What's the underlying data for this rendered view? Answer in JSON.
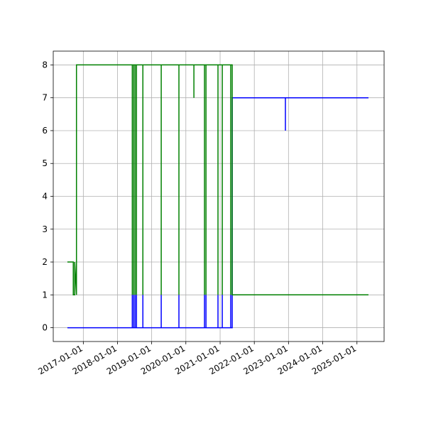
{
  "chart_data": {
    "type": "line",
    "x": [
      "2016-07-15",
      "2016-09-16",
      "2016-09-16",
      "2016-10-01",
      "2016-10-01",
      "2016-10-20",
      "2016-10-20",
      "2018-06-08",
      "2018-06-08",
      "2018-06-08",
      "2018-06-23",
      "2018-06-23",
      "2018-06-23",
      "2018-07-08",
      "2018-07-08",
      "2018-07-08",
      "2018-07-23",
      "2018-07-23",
      "2018-07-23",
      "2018-09-29",
      "2018-09-29",
      "2018-09-29",
      "2019-04-13",
      "2019-04-13",
      "2019-04-13",
      "2019-10-19",
      "2019-10-19",
      "2019-10-19",
      "2020-03-27",
      "2020-03-27",
      "2020-03-27",
      "2020-07-18",
      "2020-07-18",
      "2020-07-18",
      "2020-08-03",
      "2020-08-03",
      "2020-08-03",
      "2020-12-09",
      "2020-12-09",
      "2020-12-09",
      "2021-01-24",
      "2021-01-24",
      "2021-01-24",
      "2021-04-24",
      "2021-04-24",
      "2021-04-24",
      "2021-05-10",
      "2021-05-10",
      "2022-11-29",
      "2022-11-29",
      "2022-11-29",
      "2025-05-04"
    ],
    "series": [
      {
        "color": "#0000ff",
        "values": [
          0,
          0,
          0,
          0,
          0,
          0,
          0,
          0,
          1,
          0,
          0,
          1,
          0,
          0,
          1,
          0,
          0,
          1,
          0,
          0,
          1,
          0,
          0,
          1,
          0,
          0,
          1,
          0,
          0,
          0,
          0,
          0,
          1,
          0,
          0,
          1,
          0,
          0,
          1,
          0,
          0,
          1,
          0,
          0,
          1,
          0,
          0,
          7,
          7,
          6,
          7,
          7
        ]
      },
      {
        "color": "#008000",
        "values": [
          2,
          2,
          1,
          1,
          2,
          1,
          8,
          8,
          1,
          8,
          8,
          1,
          8,
          8,
          1,
          8,
          8,
          1,
          8,
          8,
          1,
          8,
          8,
          1,
          8,
          8,
          1,
          8,
          8,
          7,
          8,
          8,
          1,
          8,
          8,
          1,
          8,
          8,
          1,
          8,
          8,
          1,
          8,
          8,
          1,
          8,
          8,
          1,
          1,
          1,
          1,
          1
        ]
      }
    ],
    "xlim": [
      "2016-02-15",
      "2025-10-18"
    ],
    "xticks": [
      "2017-01-01",
      "2018-01-01",
      "2019-01-01",
      "2020-01-01",
      "2021-01-01",
      "2022-01-01",
      "2023-01-01",
      "2024-01-01",
      "2025-01-01"
    ],
    "ylim": [
      -0.42,
      8.42
    ],
    "yticks": [
      0,
      1,
      2,
      3,
      4,
      5,
      6,
      7,
      8
    ],
    "grid": true
  }
}
